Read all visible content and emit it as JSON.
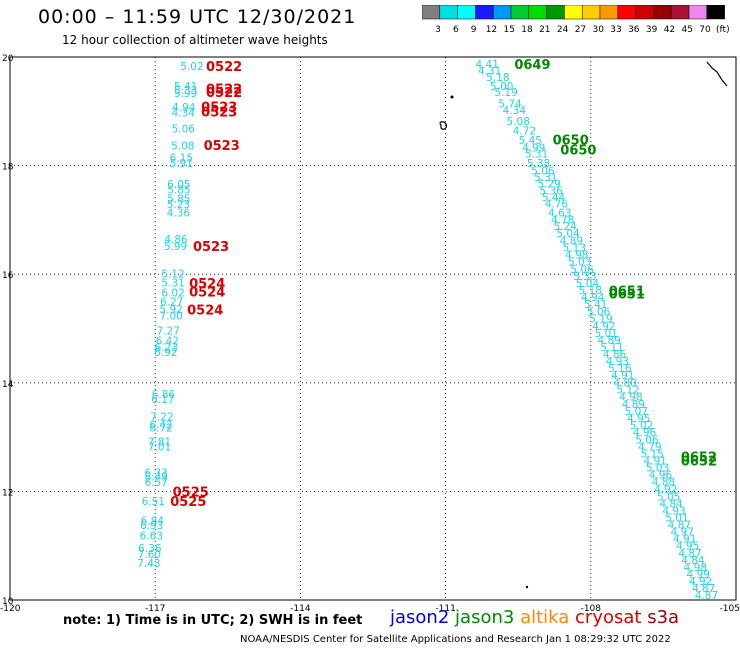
{
  "header": {
    "title": "00:00 – 11:59 UTC 12/30/2021",
    "subtitle": "12 hour collection of altimeter wave heights"
  },
  "color_scale": {
    "labels": [
      "3",
      "6",
      "9",
      "12",
      "15",
      "18",
      "21",
      "24",
      "27",
      "30",
      "33",
      "36",
      "39",
      "42",
      "45",
      "70",
      "(ft)"
    ],
    "colors": [
      "#808080",
      "#00e0e0",
      "#00ffff",
      "#1a1aff",
      "#0099ff",
      "#00cc33",
      "#00dd00",
      "#009900",
      "#ffff00",
      "#ffcc00",
      "#ff9900",
      "#ff0000",
      "#cc0000",
      "#990000",
      "#aa1133",
      "#ee88ee",
      "#000000"
    ]
  },
  "note": {
    "text": "note:  1) Time is in UTC;  2) SWH is in feet",
    "satellites": [
      {
        "name": "jason2",
        "color": "#0000dd"
      },
      {
        "name": "jason3",
        "color": "#008800"
      },
      {
        "name": "altika",
        "color": "#ff8800"
      },
      {
        "name": "cryosat",
        "color": "#dd0000"
      },
      {
        "name": "s3a",
        "color": "#990000"
      }
    ]
  },
  "footer": "NOAA/NESDIS Center for Satellite Applications and Research    Jan  1 08:29:32 UTC 2022",
  "chart_data": {
    "type": "scatter",
    "xlim": [
      -120,
      -105
    ],
    "ylim": [
      10,
      20
    ],
    "x_ticks": [
      "-120",
      "-117",
      "-114",
      "-111",
      "-108",
      "-105"
    ],
    "y_ticks": [
      "10",
      "12",
      "14",
      "16",
      "18",
      "20"
    ],
    "grid": true,
    "point_color": "#22d3e6",
    "time_color_west": "#dd0000",
    "time_color_east": "#008800",
    "track_west": [
      {
        "x": -116.24,
        "y": 19.83,
        "v": "5.02"
      },
      {
        "x": -116.37,
        "y": 19.47,
        "v": "5.41"
      },
      {
        "x": -116.37,
        "y": 19.39,
        "v": "5.33"
      },
      {
        "x": -116.37,
        "y": 19.34,
        "v": "5.99"
      },
      {
        "x": -116.41,
        "y": 19.08,
        "v": "4.94"
      },
      {
        "x": -116.42,
        "y": 18.98,
        "v": "4.34"
      },
      {
        "x": -116.42,
        "y": 18.68,
        "v": "5.06"
      },
      {
        "x": -116.43,
        "y": 18.37,
        "v": "5.08"
      },
      {
        "x": -116.46,
        "y": 18.15,
        "v": "6.15"
      },
      {
        "x": -116.46,
        "y": 18.05,
        "v": "5.91"
      },
      {
        "x": -116.51,
        "y": 17.66,
        "v": "6.05"
      },
      {
        "x": -116.51,
        "y": 17.56,
        "v": "5.85"
      },
      {
        "x": -116.51,
        "y": 17.39,
        "v": "5.85"
      },
      {
        "x": -116.52,
        "y": 17.29,
        "v": "5.23"
      },
      {
        "x": -116.52,
        "y": 17.14,
        "v": "4.36"
      },
      {
        "x": -116.57,
        "y": 16.65,
        "v": "4.86"
      },
      {
        "x": -116.58,
        "y": 16.52,
        "v": "5.99"
      },
      {
        "x": -116.63,
        "y": 16.01,
        "v": "5.12"
      },
      {
        "x": -116.63,
        "y": 15.85,
        "v": "5.31"
      },
      {
        "x": -116.63,
        "y": 15.66,
        "v": "6.02"
      },
      {
        "x": -116.66,
        "y": 15.5,
        "v": "6.27"
      },
      {
        "x": -116.67,
        "y": 15.36,
        "v": "5.92"
      },
      {
        "x": -116.67,
        "y": 15.24,
        "v": "7.00"
      },
      {
        "x": -116.73,
        "y": 14.96,
        "v": "7.27"
      },
      {
        "x": -116.75,
        "y": 14.78,
        "v": "6.42"
      },
      {
        "x": -116.77,
        "y": 14.66,
        "v": "6.23"
      },
      {
        "x": -116.78,
        "y": 14.57,
        "v": "6.92"
      },
      {
        "x": -116.83,
        "y": 13.79,
        "v": "6.86"
      },
      {
        "x": -116.84,
        "y": 13.7,
        "v": "6.17"
      },
      {
        "x": -116.86,
        "y": 13.38,
        "v": "7.22"
      },
      {
        "x": -116.88,
        "y": 13.23,
        "v": "6.42"
      },
      {
        "x": -116.88,
        "y": 13.18,
        "v": "6.72"
      },
      {
        "x": -116.91,
        "y": 12.92,
        "v": "7.81"
      },
      {
        "x": -116.91,
        "y": 12.83,
        "v": "7.01"
      },
      {
        "x": -116.98,
        "y": 12.35,
        "v": "6.33"
      },
      {
        "x": -116.98,
        "y": 12.27,
        "v": "6.49"
      },
      {
        "x": -116.98,
        "y": 12.17,
        "v": "6.57"
      },
      {
        "x": -117.04,
        "y": 11.82,
        "v": "6.51"
      },
      {
        "x": -117.06,
        "y": 11.46,
        "v": "6.84"
      },
      {
        "x": -117.07,
        "y": 11.38,
        "v": "6.93"
      },
      {
        "x": -117.08,
        "y": 11.19,
        "v": "6.63"
      },
      {
        "x": -117.11,
        "y": 10.96,
        "v": "6.36"
      },
      {
        "x": -117.12,
        "y": 10.85,
        "v": "7.60"
      },
      {
        "x": -117.13,
        "y": 10.68,
        "v": "7.43"
      }
    ],
    "track_east": [
      {
        "x": -110.14,
        "y": 19.87,
        "v": "4.41"
      },
      {
        "x": -110.09,
        "y": 19.75,
        "v": "4.31"
      },
      {
        "x": -109.92,
        "y": 19.63,
        "v": "5.18"
      },
      {
        "x": -109.84,
        "y": 19.47,
        "v": "5.00"
      },
      {
        "x": -109.75,
        "y": 19.36,
        "v": "5.19"
      },
      {
        "x": -109.67,
        "y": 19.14,
        "v": "5.74"
      },
      {
        "x": -109.58,
        "y": 19.02,
        "v": "4.34"
      },
      {
        "x": -109.5,
        "y": 18.82,
        "v": "5.08"
      },
      {
        "x": -109.37,
        "y": 18.65,
        "v": "4.72"
      },
      {
        "x": -109.25,
        "y": 18.47,
        "v": "5.45"
      },
      {
        "x": -109.18,
        "y": 18.33,
        "v": "4.99"
      },
      {
        "x": -109.12,
        "y": 18.22,
        "v": "5.31"
      },
      {
        "x": -109.08,
        "y": 18.05,
        "v": "5.38"
      },
      {
        "x": -108.99,
        "y": 17.91,
        "v": "5.06"
      },
      {
        "x": -108.93,
        "y": 17.79,
        "v": "5.31"
      },
      {
        "x": -108.86,
        "y": 17.67,
        "v": "5.29"
      },
      {
        "x": -108.82,
        "y": 17.54,
        "v": "5.36"
      },
      {
        "x": -108.77,
        "y": 17.42,
        "v": "5.44"
      },
      {
        "x": -108.71,
        "y": 17.3,
        "v": "4.76"
      },
      {
        "x": -108.64,
        "y": 17.14,
        "v": "4.63"
      },
      {
        "x": -108.58,
        "y": 17.01,
        "v": "4.78"
      },
      {
        "x": -108.53,
        "y": 16.89,
        "v": "5.24"
      },
      {
        "x": -108.47,
        "y": 16.76,
        "v": "5.04"
      },
      {
        "x": -108.4,
        "y": 16.62,
        "v": "4.89"
      },
      {
        "x": -108.34,
        "y": 16.49,
        "v": "5.13"
      },
      {
        "x": -108.29,
        "y": 16.36,
        "v": "4.98"
      },
      {
        "x": -108.23,
        "y": 16.23,
        "v": "5.03"
      },
      {
        "x": -108.18,
        "y": 16.1,
        "v": "5.06"
      },
      {
        "x": -108.12,
        "y": 15.97,
        "v": "5.33"
      },
      {
        "x": -108.07,
        "y": 15.84,
        "v": "5.04"
      },
      {
        "x": -108.01,
        "y": 15.71,
        "v": "5.18"
      },
      {
        "x": -107.96,
        "y": 15.58,
        "v": "4.94"
      },
      {
        "x": -107.9,
        "y": 15.45,
        "v": "5.41"
      },
      {
        "x": -107.84,
        "y": 15.31,
        "v": "5.06"
      },
      {
        "x": -107.79,
        "y": 15.18,
        "v": "5.19"
      },
      {
        "x": -107.73,
        "y": 15.05,
        "v": "4.92"
      },
      {
        "x": -107.68,
        "y": 14.92,
        "v": "5.01"
      },
      {
        "x": -107.62,
        "y": 14.79,
        "v": "4.89"
      },
      {
        "x": -107.56,
        "y": 14.66,
        "v": "5.11"
      },
      {
        "x": -107.51,
        "y": 14.53,
        "v": "4.86"
      },
      {
        "x": -107.45,
        "y": 14.4,
        "v": "4.93"
      },
      {
        "x": -107.4,
        "y": 14.27,
        "v": "5.16"
      },
      {
        "x": -107.34,
        "y": 14.14,
        "v": "4.91"
      },
      {
        "x": -107.29,
        "y": 14.01,
        "v": "4.80"
      },
      {
        "x": -107.23,
        "y": 13.88,
        "v": "5.12"
      },
      {
        "x": -107.17,
        "y": 13.75,
        "v": "4.98"
      },
      {
        "x": -107.12,
        "y": 13.61,
        "v": "4.89"
      },
      {
        "x": -107.06,
        "y": 13.48,
        "v": "5.07"
      },
      {
        "x": -107.01,
        "y": 13.35,
        "v": "4.95"
      },
      {
        "x": -106.95,
        "y": 13.22,
        "v": "5.02"
      },
      {
        "x": -106.89,
        "y": 13.09,
        "v": "4.96"
      },
      {
        "x": -106.84,
        "y": 12.96,
        "v": "5.06"
      },
      {
        "x": -106.78,
        "y": 12.83,
        "v": "4.79"
      },
      {
        "x": -106.73,
        "y": 12.7,
        "v": "5.15"
      },
      {
        "x": -106.67,
        "y": 12.57,
        "v": "4.91"
      },
      {
        "x": -106.62,
        "y": 12.44,
        "v": "5.03"
      },
      {
        "x": -106.56,
        "y": 12.31,
        "v": "4.96"
      },
      {
        "x": -106.5,
        "y": 12.18,
        "v": "4.88"
      },
      {
        "x": -106.45,
        "y": 12.04,
        "v": "4.92"
      },
      {
        "x": -106.39,
        "y": 11.91,
        "v": "5.05"
      },
      {
        "x": -106.34,
        "y": 11.78,
        "v": "4.84"
      },
      {
        "x": -106.28,
        "y": 11.65,
        "v": "4.93"
      },
      {
        "x": -106.22,
        "y": 11.52,
        "v": "5.01"
      },
      {
        "x": -106.17,
        "y": 11.39,
        "v": "4.87"
      },
      {
        "x": -106.11,
        "y": 11.26,
        "v": "4.97"
      },
      {
        "x": -106.06,
        "y": 11.13,
        "v": "4.91"
      },
      {
        "x": -106.0,
        "y": 11.0,
        "v": "4.95"
      },
      {
        "x": -105.95,
        "y": 10.87,
        "v": "4.87"
      },
      {
        "x": -105.89,
        "y": 10.74,
        "v": "4.84"
      },
      {
        "x": -105.84,
        "y": 10.61,
        "v": "4.98"
      },
      {
        "x": -105.78,
        "y": 10.48,
        "v": "4.99"
      },
      {
        "x": -105.73,
        "y": 10.35,
        "v": "4.92"
      },
      {
        "x": -105.67,
        "y": 10.22,
        "v": "4.87"
      },
      {
        "x": -105.61,
        "y": 10.09,
        "v": "4.87"
      }
    ],
    "time_labels": [
      {
        "x": -115.95,
        "y": 19.83,
        "t": "0522",
        "side": "west"
      },
      {
        "x": -115.95,
        "y": 19.42,
        "t": "0522",
        "side": "west"
      },
      {
        "x": -115.95,
        "y": 19.36,
        "t": "0522",
        "side": "west"
      },
      {
        "x": -116.05,
        "y": 19.09,
        "t": "0523",
        "side": "west"
      },
      {
        "x": -116.05,
        "y": 19.0,
        "t": "0523",
        "side": "west"
      },
      {
        "x": -116.0,
        "y": 18.38,
        "t": "0523",
        "side": "west"
      },
      {
        "x": -116.22,
        "y": 16.52,
        "t": "0523",
        "side": "west"
      },
      {
        "x": -116.3,
        "y": 15.84,
        "t": "0524",
        "side": "west"
      },
      {
        "x": -116.3,
        "y": 15.68,
        "t": "0524",
        "side": "west"
      },
      {
        "x": -116.34,
        "y": 15.35,
        "t": "0524",
        "side": "west"
      },
      {
        "x": -116.64,
        "y": 12.0,
        "t": "0525",
        "side": "west"
      },
      {
        "x": -116.69,
        "y": 11.82,
        "t": "0525",
        "side": "west"
      },
      {
        "x": -109.58,
        "y": 19.87,
        "t": "0649",
        "side": "east"
      },
      {
        "x": -108.79,
        "y": 18.48,
        "t": "0650",
        "side": "east"
      },
      {
        "x": -108.63,
        "y": 18.3,
        "t": "0650",
        "side": "east"
      },
      {
        "x": -107.63,
        "y": 15.7,
        "t": "0651",
        "side": "east"
      },
      {
        "x": -107.63,
        "y": 15.64,
        "t": "0651",
        "side": "east"
      },
      {
        "x": -106.14,
        "y": 12.64,
        "t": "0652",
        "side": "east"
      },
      {
        "x": -106.14,
        "y": 12.57,
        "t": "0652",
        "side": "east"
      }
    ]
  }
}
